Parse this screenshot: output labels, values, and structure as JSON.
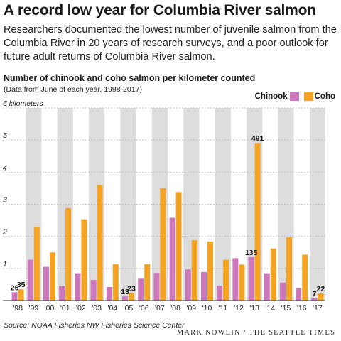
{
  "headline": "A record low year for Columbia River salmon",
  "dek": "Researchers documented the lowest number of juvenile salmon from the Columbia River in 20 years of research surveys, and a poor outlook for future adult returns of Columbia River salmon.",
  "source": "Source: NOAA Fisheries NW Fisheries Science Center",
  "credit": "MARK NOWLIN / THE SEATTLE TIMES",
  "colors": {
    "chinook": "#cc77bb",
    "coho": "#f5a322",
    "band": "#dddddd",
    "grid": "#bbbbbb",
    "axis": "#333333"
  },
  "chart_data": {
    "type": "bar",
    "title": "Number of chinook and coho salmon per kilometer counted",
    "subtitle": "(Data from June of each year, 1998-2017)",
    "ylabel": "",
    "xlabel": "",
    "ylim": [
      0,
      6
    ],
    "yticks": [
      {
        "value": 6,
        "label": "6 kilometers"
      },
      {
        "value": 5,
        "label": "5"
      },
      {
        "value": 4,
        "label": "4"
      },
      {
        "value": 3,
        "label": "3"
      },
      {
        "value": 2,
        "label": "2"
      },
      {
        "value": 1,
        "label": "1"
      }
    ],
    "grid": true,
    "legend": "top-right",
    "categories": [
      "'98",
      "'99",
      "'00",
      "'01",
      "'02",
      "'03",
      "'04",
      "'05",
      "'06",
      "'07",
      "'08",
      "'09",
      "'10",
      "'11",
      "'12",
      "'13",
      "'14",
      "'15",
      "'16",
      "'17"
    ],
    "series": [
      {
        "name": "Chinook",
        "values": [
          0.26,
          1.27,
          1.05,
          0.45,
          0.85,
          0.64,
          0.42,
          0.13,
          0.68,
          0.86,
          2.58,
          0.97,
          0.89,
          0.46,
          1.32,
          1.35,
          0.85,
          0.56,
          0.38,
          0.07
        ]
      },
      {
        "name": "Coho",
        "values": [
          0.35,
          2.3,
          1.5,
          2.88,
          2.53,
          3.6,
          1.13,
          0.23,
          1.13,
          3.5,
          3.38,
          1.88,
          1.84,
          1.27,
          1.12,
          4.91,
          1.62,
          1.97,
          1.43,
          0.22
        ]
      }
    ],
    "annotations": [
      {
        "category": "'98",
        "series": "Chinook",
        "label": "26"
      },
      {
        "category": "'98",
        "series": "Coho",
        "label": "35"
      },
      {
        "category": "'05",
        "series": "Chinook",
        "label": "13"
      },
      {
        "category": "'05",
        "series": "Coho",
        "label": "23"
      },
      {
        "category": "'13",
        "series": "Chinook",
        "label": "135"
      },
      {
        "category": "'13",
        "series": "Coho",
        "label": "491"
      },
      {
        "category": "'17",
        "series": "Chinook",
        "label": "7"
      },
      {
        "category": "'17",
        "series": "Coho",
        "label": "22"
      }
    ]
  }
}
